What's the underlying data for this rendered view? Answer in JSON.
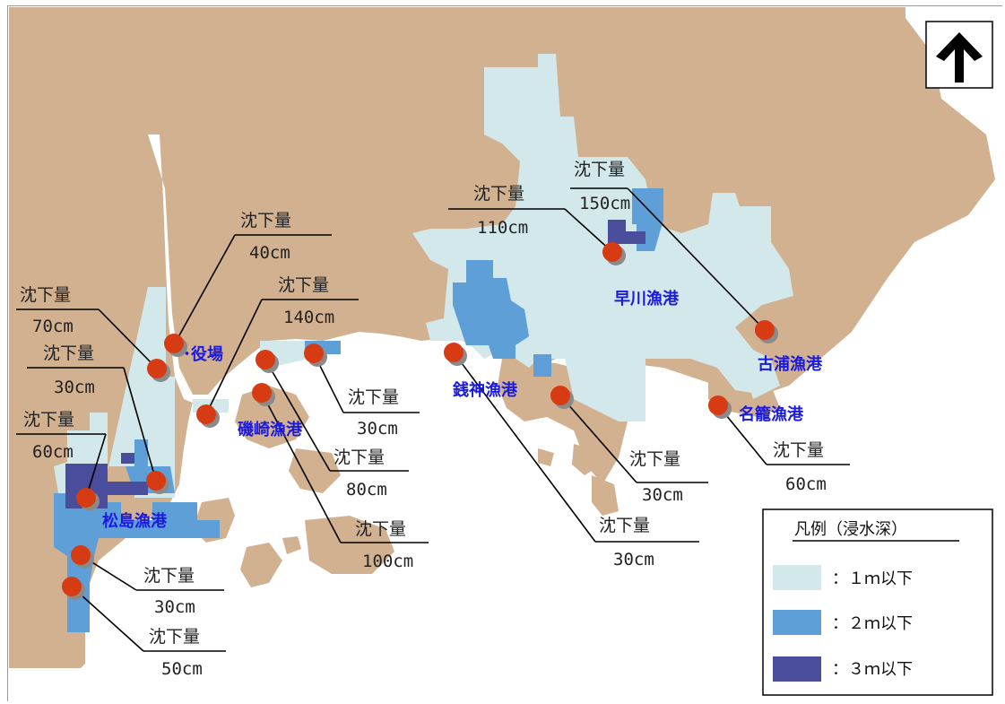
{
  "colors": {
    "land": "#d2b190",
    "sea": "#ffffff",
    "depth_1m": "#d2e8ea",
    "depth_2m": "#5f9fd8",
    "depth_3m": "#4a4c9c",
    "marker": "#d63b14",
    "port_label": "#1a1ae0"
  },
  "north_icon": "north-arrow-icon",
  "ports": {
    "matsushima": "松島漁港",
    "isozaki": "磯崎漁港",
    "zenigami": "銭神漁港",
    "hayakawa": "早川漁港",
    "furuura": "古浦漁港",
    "nago": "名籠漁港"
  },
  "town_office": "･役場",
  "callouts": [
    {
      "label": "沈下量",
      "value": "40cm"
    },
    {
      "label": "沈下量",
      "value": "70cm"
    },
    {
      "label": "沈下量",
      "value": "30cm"
    },
    {
      "label": "沈下量",
      "value": "60cm"
    },
    {
      "label": "沈下量",
      "value": "140cm"
    },
    {
      "label": "沈下量",
      "value": "30cm"
    },
    {
      "label": "沈下量",
      "value": "80cm"
    },
    {
      "label": "沈下量",
      "value": "100cm"
    },
    {
      "label": "沈下量",
      "value": "30cm"
    },
    {
      "label": "沈下量",
      "value": "50cm"
    },
    {
      "label": "沈下量",
      "value": "110cm"
    },
    {
      "label": "沈下量",
      "value": "150cm"
    },
    {
      "label": "沈下量",
      "value": "30cm"
    },
    {
      "label": "沈下量",
      "value": "30cm"
    },
    {
      "label": "沈下量",
      "value": "60cm"
    }
  ],
  "legend": {
    "title": "凡例（浸水深）",
    "items": [
      {
        "text": "：１ｍ以下"
      },
      {
        "text": "：２ｍ以下"
      },
      {
        "text": "：３ｍ以下"
      }
    ]
  }
}
